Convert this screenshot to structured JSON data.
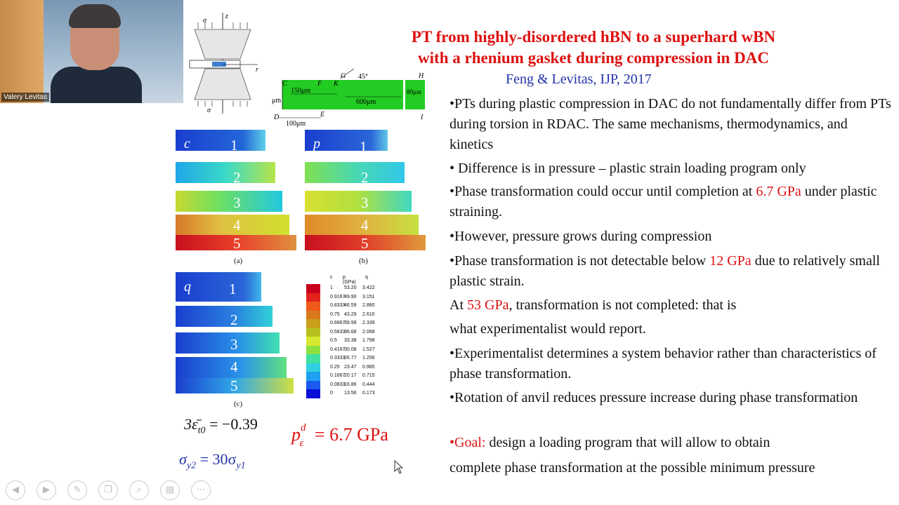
{
  "video": {
    "participant_name": "Valery Levitas"
  },
  "slide": {
    "title_line1": "PT from highly-disordered hBN to a superhard wBN",
    "title_line2": "with a rhenium gasket during compression in DAC",
    "citation": "Feng & Levitas, IJP, 2017",
    "bullets": [
      {
        "text": "•PTs during plastic compression in DAC do not fundamentally differ from PTs during torsion in RDAC. The same mechanisms, thermodynamics, and kinetics"
      },
      {
        "text": "• Difference is in pressure – plastic strain loading program only"
      },
      {
        "pre": "•Phase transformation could occur until completion at ",
        "hl": "6.7 GPa",
        "post": " under plastic straining."
      },
      {
        "text": "•However, pressure grows during compression"
      },
      {
        "pre": "•Phase transformation is not detectable below ",
        "hl": "12 GPa",
        "post": " due to relatively small plastic strain."
      },
      {
        "pre": "At ",
        "hl": "53 GPa",
        "post": ", transformation is not completed: that is"
      },
      {
        "text": "what experimentalist would report."
      },
      {
        "text": "•Experimentalist determines a system behavior rather than characteristics of phase transformation."
      },
      {
        "text": "•Rotation of anvil reduces pressure increase during phase transformation"
      },
      {
        "hl": "•Goal:",
        "post": " design a loading program that will allow to obtain"
      },
      {
        "text": "complete phase transformation at the possible minimum pressure"
      }
    ],
    "diagram": {
      "labels": {
        "sigma_top": "σ",
        "z": "z",
        "r": "r",
        "sigma_bottom": "σ",
        "angle": "45°",
        "um": "μm",
        "C": "C",
        "F": "F",
        "K": "K",
        "G": "G",
        "H": "H",
        "D": "D",
        "E": "E",
        "I": "I",
        "dim150": "150μm",
        "dim600": "600μm",
        "dim80": "80μm",
        "dim100": "100μm"
      }
    },
    "panels": {
      "a": {
        "label": "c",
        "numbers": [
          "1",
          "2",
          "3",
          "4",
          "5"
        ],
        "caption": "(a)"
      },
      "b": {
        "label": "p",
        "numbers": [
          "1",
          "2",
          "3",
          "4",
          "5"
        ],
        "caption": "(b)"
      },
      "c": {
        "label": "q",
        "numbers": [
          "1",
          "2",
          "3",
          "4",
          "5"
        ],
        "caption": "(c)"
      }
    },
    "legend": {
      "headers": [
        "c",
        "p (GPa)",
        "q"
      ],
      "rows": [
        {
          "c": "1",
          "p": "53.20",
          "q": "3.422",
          "color": "#c8001e"
        },
        {
          "c": "0.9167",
          "p": "49.90",
          "q": "3.151",
          "color": "#e0241c"
        },
        {
          "c": "0.8333",
          "p": "46.59",
          "q": "2.880",
          "color": "#ee5a1a"
        },
        {
          "c": "0.75",
          "p": "43.29",
          "q": "2.610",
          "color": "#d87a1c"
        },
        {
          "c": "0.6667",
          "p": "39.99",
          "q": "2.339",
          "color": "#c8a01a"
        },
        {
          "c": "0.5833",
          "p": "36.68",
          "q": "2.068",
          "color": "#b8c020"
        },
        {
          "c": "0.5",
          "p": "33.38",
          "q": "1.798",
          "color": "#d8e830"
        },
        {
          "c": "0.4167",
          "p": "30.08",
          "q": "1.527",
          "color": "#8ee040"
        },
        {
          "c": "0.3333",
          "p": "26.77",
          "q": "1.256",
          "color": "#40e0a0"
        },
        {
          "c": "0.25",
          "p": "23.47",
          "q": "0.985",
          "color": "#30d0e0"
        },
        {
          "c": "0.1667",
          "p": "20.17",
          "q": "0.715",
          "color": "#20a0f0"
        },
        {
          "c": "0.0833",
          "p": "16.86",
          "q": "0.444",
          "color": "#1a5aee"
        },
        {
          "c": "0",
          "p": "13.56",
          "q": "0.173",
          "color": "#0a10d8"
        }
      ]
    },
    "formulas": {
      "strain": "3ε̄",
      "strain_sub": "t0",
      "strain_val": " = −0.39",
      "yield_a": "σ",
      "yield_a_sub": "y2",
      "yield_eq": " = 30σ",
      "yield_b_sub": "y1",
      "pressure_p": "p",
      "pressure_sup": "d",
      "pressure_sub": "ε",
      "pressure_val": " = 6.7  GPa"
    }
  },
  "colors": {
    "title": "#dd1111",
    "citation": "#2233aa",
    "highlight": "#dd1111",
    "green_sample": "#22cc22"
  },
  "controls": [
    "back-icon",
    "play-icon",
    "pen-icon",
    "copy-icon",
    "zoom-icon",
    "captions-icon",
    "more-icon"
  ]
}
